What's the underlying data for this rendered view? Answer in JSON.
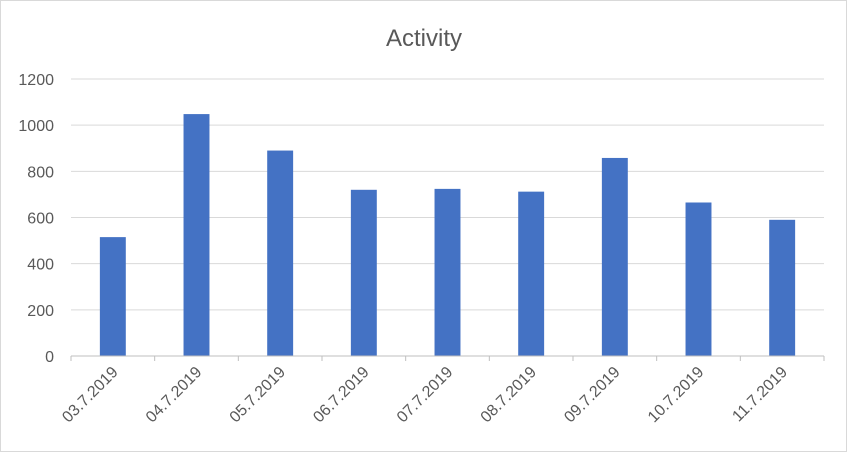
{
  "chart_data": {
    "type": "bar",
    "title": "Activity",
    "xlabel": "",
    "ylabel": "",
    "categories": [
      "03.7.2019",
      "04.7.2019",
      "05.7.2019",
      "06.7.2019",
      "07.7.2019",
      "08.7.2019",
      "09.7.2019",
      "10.7.2019",
      "11.7.2019"
    ],
    "values": [
      515,
      1048,
      890,
      720,
      724,
      712,
      858,
      665,
      590
    ],
    "ylim": [
      0,
      1200
    ],
    "yticks": [
      0,
      200,
      400,
      600,
      800,
      1000,
      1200
    ],
    "grid": true,
    "legend": "none",
    "bar_color": "#4472c4",
    "grid_color": "#d9d9d9",
    "axis_color": "#bfbfbf",
    "text_color": "#595959"
  }
}
